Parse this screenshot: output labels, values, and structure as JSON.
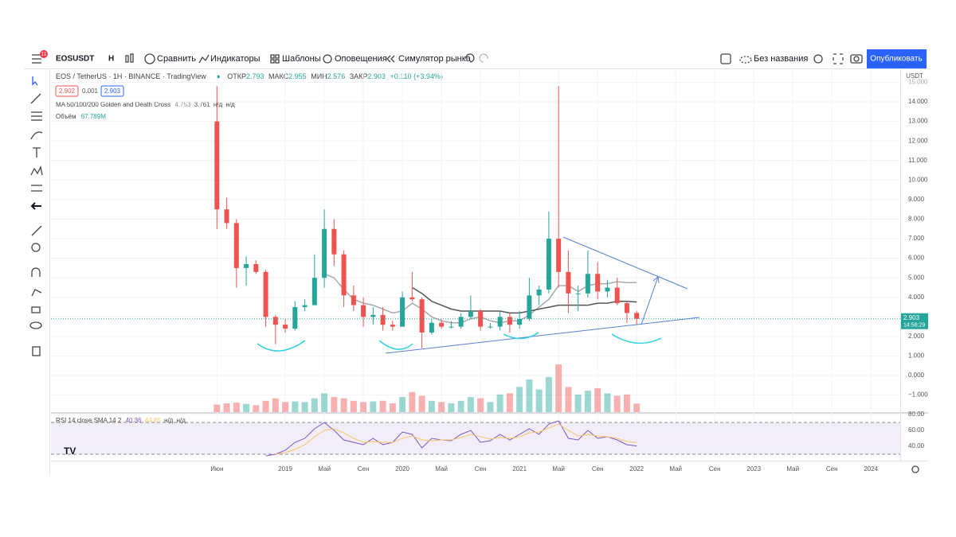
{
  "toolbar": {
    "badge": "11",
    "symbol": "EOSUSDT",
    "interval": "Н",
    "compare": "Сравнить",
    "indicators": "Индикаторы",
    "templates": "Шаблоны",
    "alerts": "Оповещения",
    "replay": "Симулятор рынка",
    "layout_name": "Без названия",
    "publish": "Опубликовать"
  },
  "legend": {
    "symbol_title": "EOS / TetherUS · 1H · BINANCE · TradingView",
    "open_label": "ОТКР",
    "open": "2.793",
    "high_label": "МАКС",
    "high": "2.955",
    "low_label": "МИН",
    "low": "2.576",
    "close_label": "ЗАКР",
    "close": "2.903",
    "change": "+0.110 (+3.94%)",
    "bid": "2.902",
    "spread": "0.001",
    "ask": "2.903"
  },
  "price_tag": {
    "price": "2.903",
    "timer": "14:58:29"
  },
  "chart_data": [
    {
      "type": "candlestick",
      "unit": "USDT",
      "x": [
        "2018-06",
        "2018-07",
        "2018-08",
        "2018-09",
        "2018-10",
        "2018-11",
        "2018-12",
        "2019-01",
        "2019-02",
        "2019-03",
        "2019-04",
        "2019-05",
        "2019-06",
        "2019-07",
        "2019-08",
        "2019-09",
        "2019-10",
        "2019-11",
        "2019-12",
        "2020-01",
        "2020-02",
        "2020-03",
        "2020-04",
        "2020-05",
        "2020-06",
        "2020-07",
        "2020-08",
        "2020-09",
        "2020-10",
        "2020-11",
        "2020-12",
        "2021-01",
        "2021-02",
        "2021-03",
        "2021-04",
        "2021-05",
        "2021-06",
        "2021-07",
        "2021-08",
        "2021-09",
        "2021-10",
        "2021-11",
        "2021-12",
        "2022-01"
      ],
      "open": [
        13,
        8.5,
        7.8,
        5.5,
        5.7,
        5.3,
        3.0,
        2.6,
        2.4,
        3.5,
        3.6,
        5.0,
        7.5,
        6.2,
        4.1,
        3.6,
        3.0,
        3.1,
        2.6,
        2.5,
        4.0,
        3.9,
        2.2,
        2.7,
        2.5,
        2.5,
        3.0,
        3.3,
        2.5,
        2.5,
        3.0,
        2.6,
        2.9,
        4.1,
        4.4,
        7.0,
        5.3,
        4.2,
        4.2,
        5.2,
        4.3,
        4.5,
        3.7,
        3.2
      ],
      "high": [
        14.8,
        9.1,
        8.0,
        6.1,
        5.9,
        5.4,
        3.1,
        2.9,
        3.8,
        3.9,
        6.2,
        8.5,
        8.0,
        6.4,
        4.6,
        4.0,
        3.5,
        3.5,
        2.8,
        4.3,
        5.3,
        4.0,
        2.9,
        2.9,
        2.8,
        3.2,
        4.1,
        3.4,
        2.7,
        3.3,
        3.2,
        3.3,
        5.0,
        4.6,
        8.4,
        14.8,
        6.4,
        4.6,
        6.4,
        5.8,
        4.9,
        5.0,
        3.8,
        3.3
      ],
      "low": [
        7.5,
        7.5,
        4.5,
        4.6,
        5.2,
        2.5,
        1.6,
        2.2,
        2.3,
        3.3,
        3.6,
        4.5,
        5.6,
        3.5,
        3.3,
        2.5,
        2.6,
        2.3,
        2.3,
        2.5,
        3.8,
        1.4,
        2.1,
        2.4,
        2.4,
        2.4,
        2.9,
        2.3,
        2.4,
        2.3,
        2.2,
        2.4,
        2.8,
        3.6,
        4.2,
        4.5,
        3.2,
        3.3,
        4.0,
        3.9,
        4.0,
        3.6,
        2.7,
        2.6
      ],
      "close": [
        8.5,
        7.8,
        5.5,
        5.7,
        5.3,
        3.0,
        2.6,
        2.4,
        3.5,
        3.6,
        5.0,
        7.5,
        6.2,
        4.1,
        3.6,
        3.0,
        3.1,
        2.6,
        2.5,
        4.0,
        3.9,
        2.2,
        2.7,
        2.5,
        2.5,
        3.0,
        3.3,
        2.5,
        2.5,
        3.0,
        2.6,
        2.9,
        4.1,
        4.4,
        7.0,
        5.3,
        4.2,
        4.2,
        5.2,
        4.3,
        4.5,
        3.7,
        3.2,
        2.903
      ],
      "up_color": "#26a69a",
      "down_color": "#ef5350",
      "ma": {
        "name": "MA 50/100/200 Golden and Death Cross",
        "value_labels": [
          "4.753",
          "3.761",
          "н/д",
          "н/д"
        ],
        "series": [
          {
            "color": "#a8a8a8",
            "values": [
              null,
              null,
              null,
              null,
              null,
              null,
              null,
              null,
              null,
              null,
              null,
              5.2,
              5.0,
              4.4,
              3.9,
              3.7,
              3.6,
              3.4,
              3.2,
              3.3,
              3.7,
              3.4,
              3.0,
              2.8,
              2.7,
              2.7,
              2.9,
              3.0,
              2.8,
              2.7,
              2.8,
              2.8,
              3.1,
              3.5,
              3.9,
              4.6,
              4.6,
              4.3,
              4.6,
              4.7,
              4.7,
              4.8,
              4.75,
              4.753
            ]
          },
          {
            "color": "#555555",
            "values": [
              null,
              null,
              null,
              null,
              null,
              null,
              null,
              null,
              null,
              null,
              null,
              null,
              null,
              null,
              null,
              null,
              null,
              null,
              null,
              null,
              4.5,
              4.2,
              3.8,
              3.6,
              3.4,
              3.3,
              3.3,
              3.3,
              3.3,
              3.3,
              3.2,
              3.2,
              3.3,
              3.4,
              3.5,
              3.6,
              3.6,
              3.6,
              3.6,
              3.7,
              3.7,
              3.8,
              3.8,
              3.761
            ]
          }
        ]
      },
      "volume": {
        "name": "Объём",
        "value_label": "67.789M",
        "values": [
          60,
          70,
          75,
          65,
          55,
          90,
          110,
          80,
          85,
          80,
          110,
          150,
          120,
          110,
          90,
          80,
          85,
          90,
          70,
          120,
          160,
          130,
          90,
          80,
          70,
          90,
          120,
          110,
          80,
          140,
          150,
          200,
          260,
          180,
          280,
          380,
          200,
          140,
          170,
          190,
          150,
          130,
          140,
          67.789
        ]
      },
      "xlim": [
        "2017-01",
        "2024-04"
      ],
      "xticks": [
        {
          "value": "2018-06",
          "label": "Июн"
        },
        {
          "value": "2019-01",
          "label": "2019"
        },
        {
          "value": "2019-05",
          "label": "Май"
        },
        {
          "value": "2019-09",
          "label": "Сен"
        },
        {
          "value": "2020-01",
          "label": "2020"
        },
        {
          "value": "2020-05",
          "label": "Май"
        },
        {
          "value": "2020-09",
          "label": "Сен"
        },
        {
          "value": "2021-01",
          "label": "2021"
        },
        {
          "value": "2021-05",
          "label": "Май"
        },
        {
          "value": "2021-09",
          "label": "Сен"
        },
        {
          "value": "2022-01",
          "label": "2022"
        },
        {
          "value": "2022-05",
          "label": "Май"
        },
        {
          "value": "2022-09",
          "label": "Сен"
        },
        {
          "value": "2023-01",
          "label": "2023"
        },
        {
          "value": "2023-05",
          "label": "Май"
        },
        {
          "value": "2023-09",
          "label": "Сен"
        },
        {
          "value": "2024-01",
          "label": "2024"
        }
      ],
      "ylim": [
        -1.87,
        15.63
      ],
      "yticks": [
        {
          "value": -1,
          "label": "−1.000"
        },
        {
          "value": 0,
          "label": "0.000"
        },
        {
          "value": 1,
          "label": "1.000"
        },
        {
          "value": 2,
          "label": "2.000"
        },
        {
          "value": 3,
          "label": "3.000"
        },
        {
          "value": 4,
          "label": "4.000"
        },
        {
          "value": 5,
          "label": "5.000"
        },
        {
          "value": 6,
          "label": "6.000"
        },
        {
          "value": 7,
          "label": "7.000"
        },
        {
          "value": 8,
          "label": "8.000"
        },
        {
          "value": 9,
          "label": "9.000"
        },
        {
          "value": 10,
          "label": "10.000"
        },
        {
          "value": 11,
          "label": "11.000"
        },
        {
          "value": 12,
          "label": "12.000"
        },
        {
          "value": 13,
          "label": "13.000"
        },
        {
          "value": 14,
          "label": "14.000"
        },
        {
          "value": 15,
          "label": "15.000"
        }
      ],
      "grid": true
    },
    {
      "type": "line",
      "title": "RSI 14 close SMA 14 2",
      "legend_values": [
        "40.36",
        "44.85",
        "н/д",
        "н/д"
      ],
      "x": [
        "2018-06",
        "2018-07",
        "2018-08",
        "2018-09",
        "2018-10",
        "2018-11",
        "2018-12",
        "2019-01",
        "2019-02",
        "2019-03",
        "2019-04",
        "2019-05",
        "2019-06",
        "2019-07",
        "2019-08",
        "2019-09",
        "2019-10",
        "2019-11",
        "2019-12",
        "2020-01",
        "2020-02",
        "2020-03",
        "2020-04",
        "2020-05",
        "2020-06",
        "2020-07",
        "2020-08",
        "2020-09",
        "2020-10",
        "2020-11",
        "2020-12",
        "2021-01",
        "2021-02",
        "2021-03",
        "2021-04",
        "2021-05",
        "2021-06",
        "2021-07",
        "2021-08",
        "2021-09",
        "2021-10",
        "2021-11",
        "2021-12",
        "2022-01"
      ],
      "series": [
        {
          "color": "#7e57c2",
          "values": [
            null,
            null,
            null,
            null,
            null,
            28,
            30,
            35,
            45,
            50,
            62,
            70,
            60,
            48,
            45,
            42,
            50,
            42,
            45,
            58,
            55,
            38,
            50,
            48,
            47,
            55,
            60,
            45,
            47,
            55,
            48,
            55,
            62,
            55,
            68,
            72,
            50,
            48,
            60,
            50,
            52,
            48,
            42,
            40.36
          ]
        },
        {
          "color": "#f5c56b",
          "values": [
            null,
            null,
            null,
            null,
            null,
            null,
            30,
            32,
            36,
            42,
            52,
            60,
            62,
            57,
            50,
            45,
            46,
            45,
            45,
            50,
            53,
            48,
            47,
            48,
            48,
            51,
            55,
            52,
            49,
            51,
            50,
            52,
            57,
            58,
            63,
            68,
            60,
            53,
            55,
            53,
            52,
            50,
            46,
            44.85
          ]
        }
      ],
      "bands": [
        30,
        70
      ],
      "ylim": [
        23,
        81
      ],
      "yticks": [
        {
          "value": 40,
          "label": "40.00"
        },
        {
          "value": 60,
          "label": "60.00"
        },
        {
          "value": 80,
          "label": "80.00"
        }
      ]
    }
  ]
}
